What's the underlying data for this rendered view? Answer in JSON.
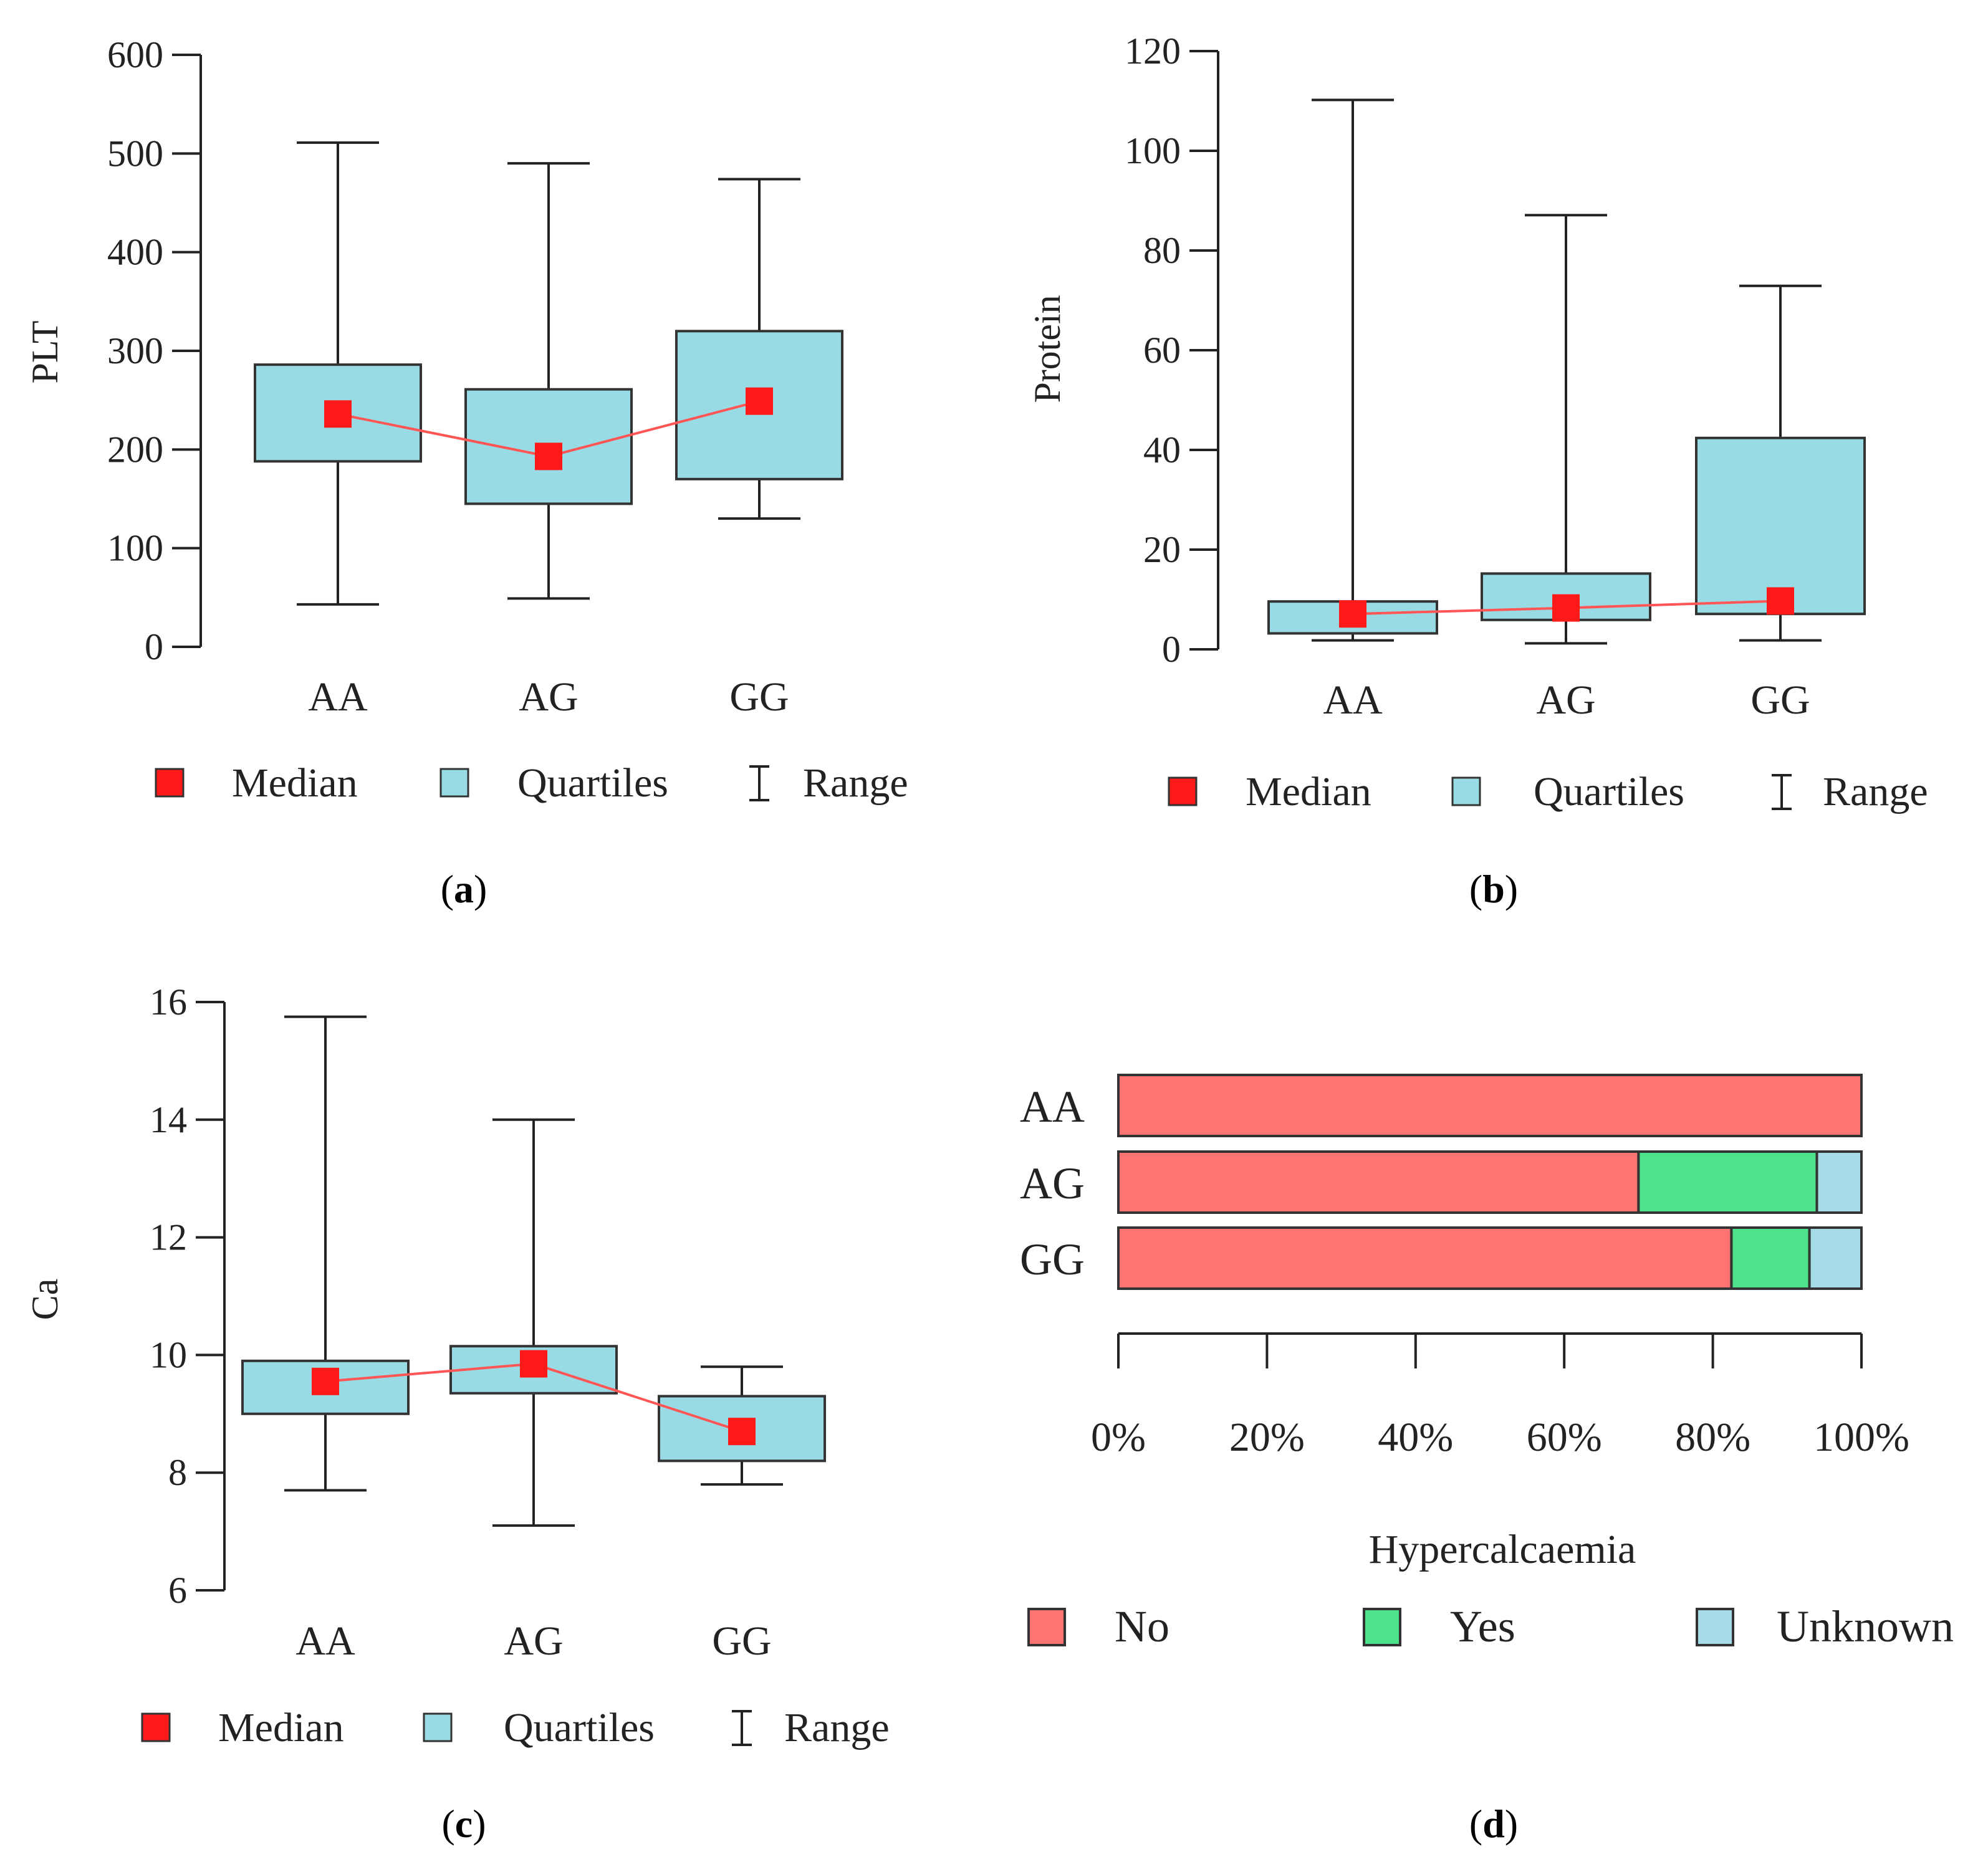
{
  "figure": {
    "panel_labels": [
      "a",
      "b",
      "c",
      "d"
    ]
  },
  "legend": {
    "median": "Median",
    "quartiles": "Quartiles",
    "range": "Range"
  },
  "colors": {
    "median": "#ff1a1a",
    "median_line": "#ff5555",
    "box": "#99dbe5",
    "whisker": "#222222",
    "no": "#ff7373",
    "yes": "#4de38a",
    "unknown": "#a6dbe8"
  },
  "chart_data": [
    {
      "type": "box",
      "panel": "a",
      "ylabel": "PLT",
      "categories": [
        "AA",
        "AG",
        "GG"
      ],
      "ylim": [
        0,
        600
      ],
      "yticks": [
        0,
        100,
        200,
        300,
        400,
        500,
        600
      ],
      "min": [
        43,
        49,
        130
      ],
      "q1": [
        188,
        145,
        170
      ],
      "median": [
        236,
        193,
        249
      ],
      "q3": [
        286,
        261,
        320
      ],
      "max": [
        511,
        490,
        474
      ]
    },
    {
      "type": "box",
      "panel": "b",
      "ylabel": "Protein",
      "categories": [
        "AA",
        "AG",
        "GG"
      ],
      "ylim": [
        0,
        120
      ],
      "yticks": [
        0,
        20,
        40,
        60,
        80,
        100,
        120
      ],
      "min": [
        1.8,
        1.2,
        1.8
      ],
      "q1": [
        3.2,
        5.9,
        7.1
      ],
      "median": [
        7.1,
        8.3,
        9.7
      ],
      "q3": [
        9.6,
        15.2,
        42.4
      ],
      "max": [
        110.2,
        87.1,
        72.9
      ]
    },
    {
      "type": "box",
      "panel": "c",
      "ylabel": "Ca",
      "categories": [
        "AA",
        "AG",
        "GG"
      ],
      "ylim": [
        6,
        16
      ],
      "yticks": [
        6,
        8,
        10,
        12,
        14,
        16
      ],
      "min": [
        7.7,
        7.1,
        7.8
      ],
      "q1": [
        9.0,
        9.35,
        8.2
      ],
      "median": [
        9.55,
        9.85,
        8.7
      ],
      "q3": [
        9.9,
        10.15,
        9.3
      ],
      "max": [
        15.75,
        14.0,
        9.8
      ]
    },
    {
      "type": "bar",
      "orientation": "horizontal",
      "stacked": "percent",
      "panel": "d",
      "xlabel": "Hypercalcaemia",
      "categories": [
        "AA",
        "AG",
        "GG"
      ],
      "xlim": [
        0,
        100
      ],
      "xticks": [
        "0%",
        "20%",
        "40%",
        "60%",
        "80%",
        "100%"
      ],
      "series": [
        {
          "name": "No",
          "values": [
            100,
            70,
            82.5
          ]
        },
        {
          "name": "Yes",
          "values": [
            0,
            24,
            10.5
          ]
        },
        {
          "name": "Unknown",
          "values": [
            0,
            6,
            7
          ]
        }
      ]
    }
  ]
}
